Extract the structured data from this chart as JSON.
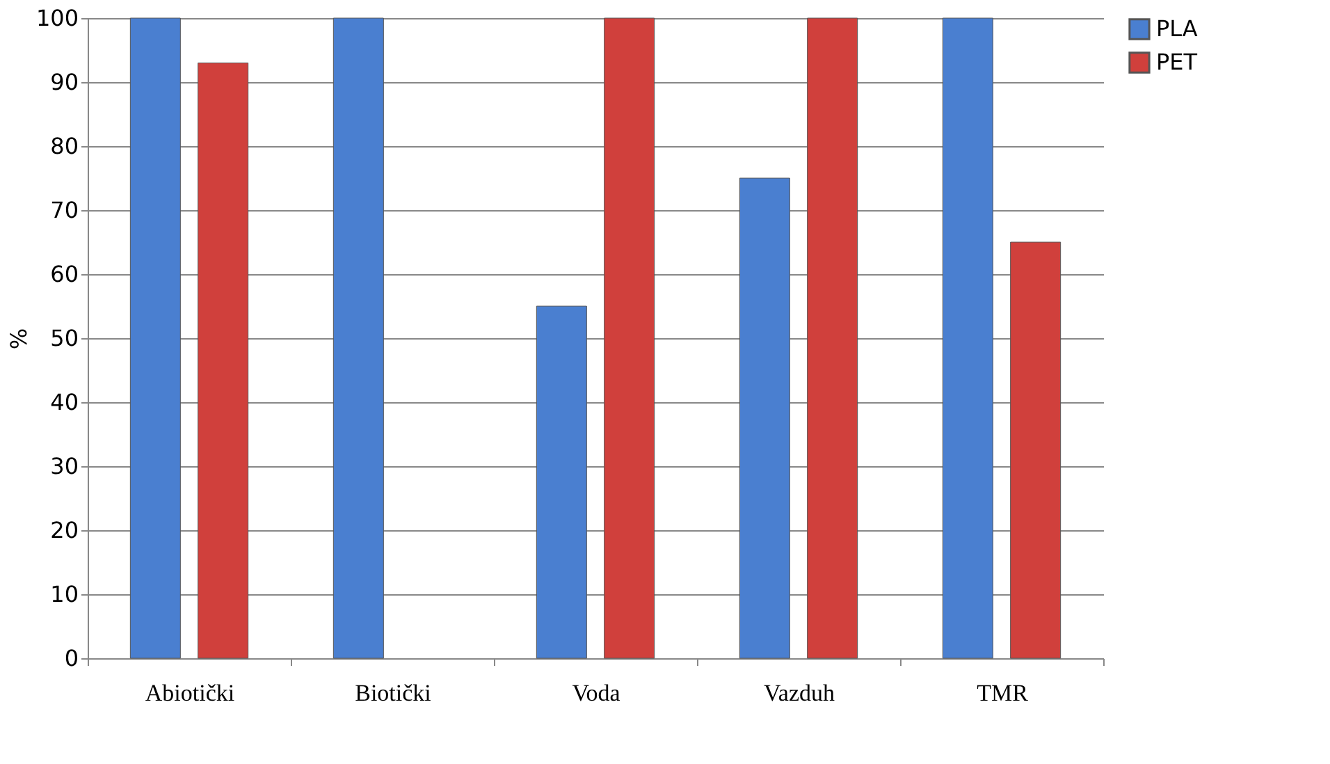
{
  "chart_data": {
    "type": "bar",
    "ylabel": "%",
    "categories": [
      "Abiotički",
      "Biotički",
      "Voda",
      "Vazduh",
      "TMR"
    ],
    "series": [
      {
        "name": "PLA",
        "color": "#4a7fd0",
        "values": [
          100,
          100,
          55,
          75,
          100
        ]
      },
      {
        "name": "PET",
        "color": "#d0403c",
        "values": [
          93,
          null,
          100,
          100,
          65
        ]
      }
    ],
    "ylim": [
      0,
      100
    ],
    "yticks": [
      0,
      10,
      20,
      30,
      40,
      50,
      60,
      70,
      80,
      90,
      100
    ],
    "grid": "y",
    "legend": "right"
  }
}
